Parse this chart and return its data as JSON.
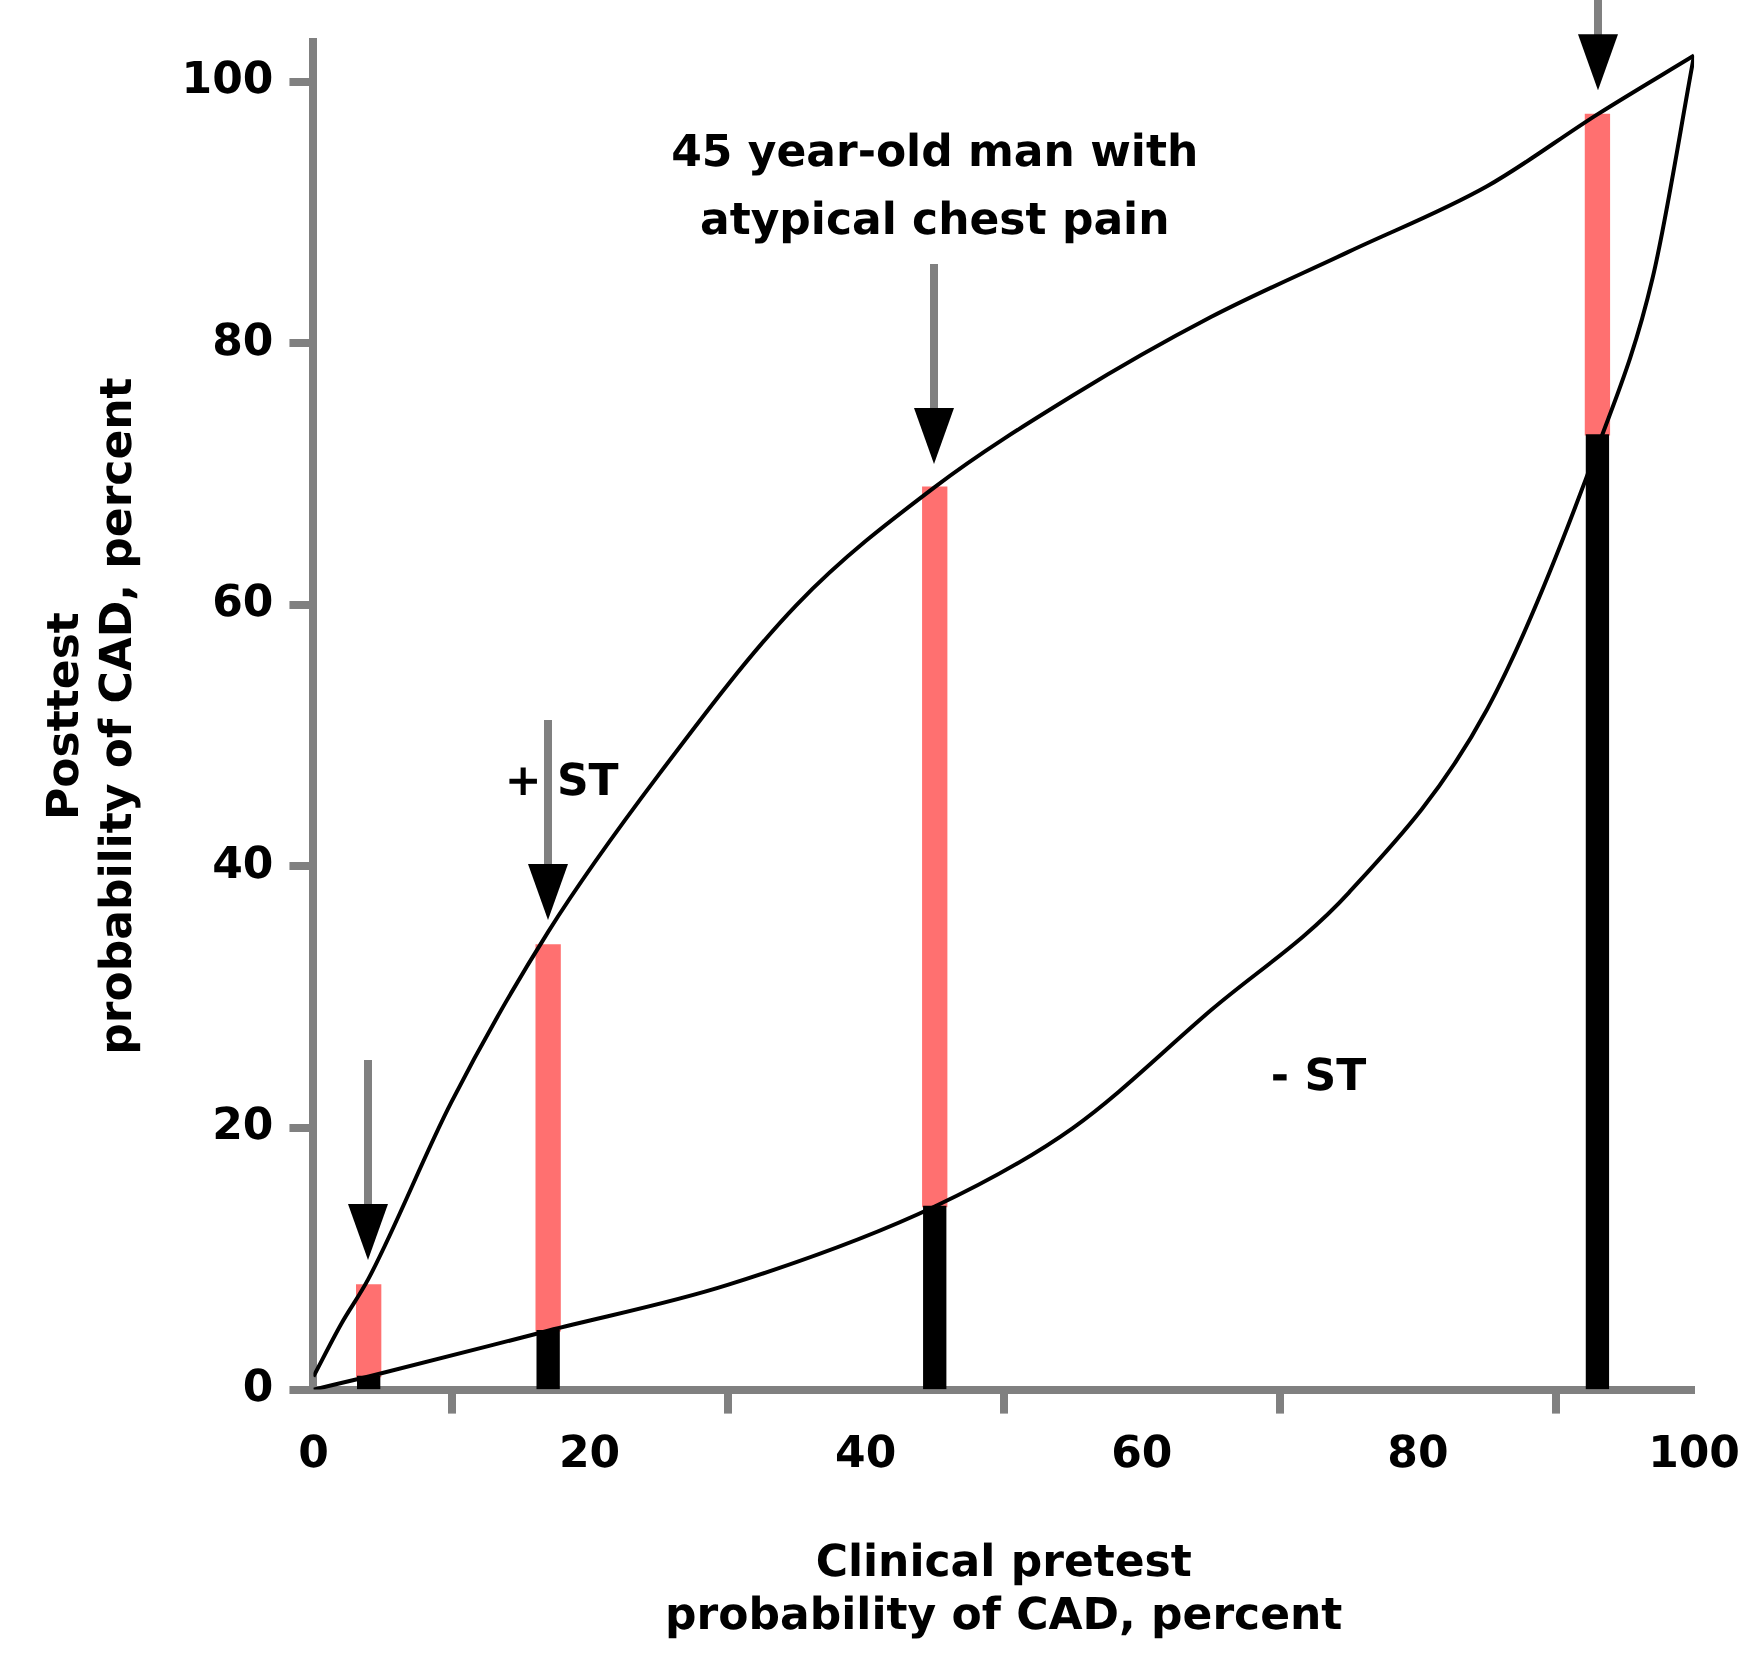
{
  "chart_data": {
    "type": "bar",
    "xlabel": "Clinical pretest\nprobability of CAD, percent",
    "ylabel": "Posttest\nprobability of CAD, percent",
    "stacked": true,
    "xlim": [
      0,
      100
    ],
    "ylim": [
      0,
      103
    ],
    "xticks": [
      0,
      20,
      40,
      60,
      80,
      100
    ],
    "yticks": [
      0,
      20,
      40,
      60,
      80,
      100
    ],
    "grid": false,
    "legend": false,
    "marker": "none",
    "series": [
      {
        "type": "bar",
        "color": "#000000",
        "x": [
          4,
          17,
          45,
          93
        ],
        "values": [
          1,
          4.5,
          14,
          73
        ]
      },
      {
        "color": "#ff7070",
        "x": [
          4,
          17,
          45,
          93
        ],
        "values": [
          7,
          29.5,
          55,
          24.5
        ]
      },
      {
        "type": "line",
        "name": "+ ST",
        "color": "#000000",
        "x": [
          0,
          2,
          4,
          10,
          17,
          25,
          35,
          45,
          55,
          65,
          75,
          85,
          93,
          100
        ],
        "values": [
          1,
          5,
          8.5,
          22,
          35,
          47,
          60,
          69,
          76,
          82,
          87,
          92,
          97.5,
          102
        ]
      },
      {
        "type": "line",
        "name": "- ST",
        "color": "#000000",
        "x": [
          0,
          4,
          17,
          30,
          45,
          55,
          65,
          75,
          85,
          93,
          97,
          100
        ],
        "values": [
          0,
          1,
          4.5,
          8,
          14,
          20,
          29,
          38,
          52,
          72,
          85,
          102
        ]
      }
    ],
    "annotations": [
      "45 year-old man with atypical chest pain"
    ]
  }
}
